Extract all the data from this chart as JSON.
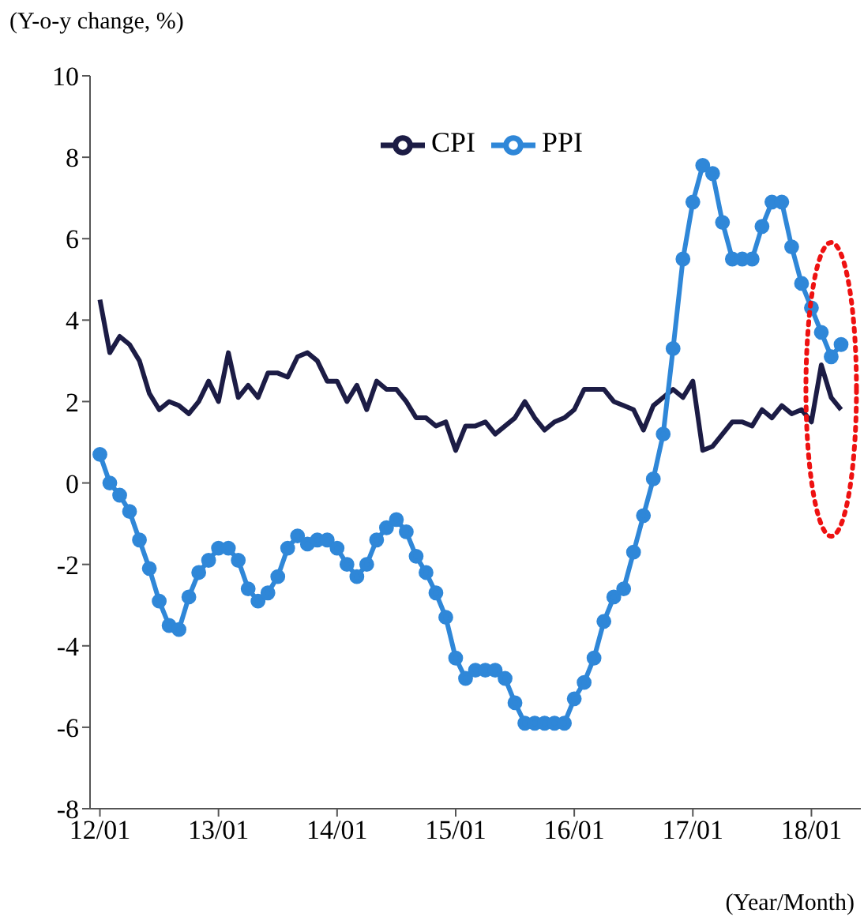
{
  "chart_data": {
    "type": "line",
    "ylabel": "(Y-o-y change, %)",
    "xlabel": "(Year/Month)",
    "categories": [
      "12/01",
      null,
      null,
      null,
      null,
      null,
      null,
      null,
      null,
      null,
      null,
      null,
      "13/01",
      null,
      null,
      null,
      null,
      null,
      null,
      null,
      null,
      null,
      null,
      null,
      "14/01",
      null,
      null,
      null,
      null,
      null,
      null,
      null,
      null,
      null,
      null,
      null,
      "15/01",
      null,
      null,
      null,
      null,
      null,
      null,
      null,
      null,
      null,
      null,
      null,
      "16/01",
      null,
      null,
      null,
      null,
      null,
      null,
      null,
      null,
      null,
      null,
      null,
      "17/01",
      null,
      null,
      null,
      null,
      null,
      null,
      null,
      null,
      null,
      null,
      null,
      "18/01",
      null,
      null,
      null
    ],
    "series": [
      {
        "name": "CPI",
        "color": "#1c1c45",
        "marker": "none",
        "values": [
          4.5,
          3.2,
          3.6,
          3.4,
          3.0,
          2.2,
          1.8,
          2.0,
          1.9,
          1.7,
          2.0,
          2.5,
          2.0,
          3.2,
          2.1,
          2.4,
          2.1,
          2.7,
          2.7,
          2.6,
          3.1,
          3.2,
          3.0,
          2.5,
          2.5,
          2.0,
          2.4,
          1.8,
          2.5,
          2.3,
          2.3,
          2.0,
          1.6,
          1.6,
          1.4,
          1.5,
          0.8,
          1.4,
          1.4,
          1.5,
          1.2,
          1.4,
          1.6,
          2.0,
          1.6,
          1.3,
          1.5,
          1.6,
          1.8,
          2.3,
          2.3,
          2.3,
          2.0,
          1.9,
          1.8,
          1.3,
          1.9,
          2.1,
          2.3,
          2.1,
          2.5,
          0.8,
          0.9,
          1.2,
          1.5,
          1.5,
          1.4,
          1.8,
          1.6,
          1.9,
          1.7,
          1.8,
          1.5,
          2.9,
          2.1,
          1.8
        ]
      },
      {
        "name": "PPI",
        "color": "#2f87d8",
        "marker": "circle",
        "values": [
          0.7,
          0.0,
          -0.3,
          -0.7,
          -1.4,
          -2.1,
          -2.9,
          -3.5,
          -3.6,
          -2.8,
          -2.2,
          -1.9,
          -1.6,
          -1.6,
          -1.9,
          -2.6,
          -2.9,
          -2.7,
          -2.3,
          -1.6,
          -1.3,
          -1.5,
          -1.4,
          -1.4,
          -1.6,
          -2.0,
          -2.3,
          -2.0,
          -1.4,
          -1.1,
          -0.9,
          -1.2,
          -1.8,
          -2.2,
          -2.7,
          -3.3,
          -4.3,
          -4.8,
          -4.6,
          -4.6,
          -4.6,
          -4.8,
          -5.4,
          -5.9,
          -5.9,
          -5.9,
          -5.9,
          -5.9,
          -5.3,
          -4.9,
          -4.3,
          -3.4,
          -2.8,
          -2.6,
          -1.7,
          -0.8,
          0.1,
          1.2,
          3.3,
          5.5,
          6.9,
          7.8,
          7.6,
          6.4,
          5.5,
          5.5,
          5.5,
          6.3,
          6.9,
          6.9,
          5.8,
          4.9,
          4.3,
          3.7,
          3.1,
          3.4
        ]
      }
    ],
    "ylim": [
      -8,
      10
    ],
    "yticks": [
      -8,
      -6,
      -4,
      -2,
      0,
      2,
      4,
      6,
      8,
      10
    ],
    "grid": false,
    "legend": "top",
    "line_style": "solid"
  }
}
